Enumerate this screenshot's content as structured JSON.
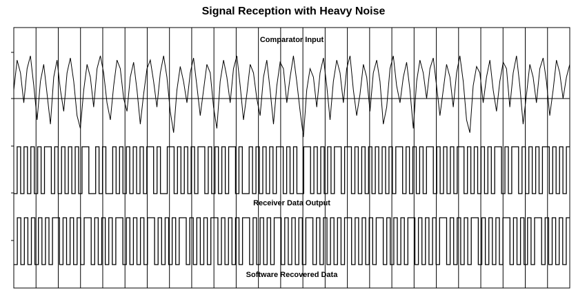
{
  "chart_data": {
    "type": "line",
    "title": "Signal Reception with Heavy Noise",
    "xlabel": "",
    "ylabel": "",
    "grid": true,
    "traces": [
      {
        "name": "Comparator Input",
        "kind": "analog",
        "values": [
          0.2,
          0.9,
          0.6,
          -0.1,
          0.7,
          1.0,
          0.3,
          -0.5,
          0.4,
          0.8,
          0.1,
          -0.6,
          0.5,
          0.9,
          0.2,
          -0.3,
          0.6,
          0.95,
          0.4,
          -0.4,
          -0.7,
          0.2,
          0.8,
          0.5,
          -0.2,
          0.7,
          1.0,
          0.6,
          -0.1,
          -0.5,
          0.3,
          0.9,
          0.7,
          0.0,
          -0.3,
          0.5,
          0.85,
          0.2,
          -0.6,
          0.1,
          0.7,
          0.9,
          0.4,
          -0.2,
          0.6,
          1.0,
          0.5,
          -0.3,
          -0.8,
          0.2,
          0.75,
          0.4,
          -0.1,
          0.6,
          0.95,
          0.3,
          -0.4,
          0.2,
          0.8,
          0.6,
          -0.2,
          -0.7,
          0.4,
          0.9,
          0.5,
          -0.1,
          0.7,
          1.0,
          0.3,
          -0.5,
          0.1,
          0.8,
          0.6,
          0.0,
          -0.4,
          0.5,
          0.9,
          0.2,
          -0.6,
          0.3,
          0.85,
          0.7,
          -0.1,
          0.5,
          1.0,
          0.4,
          -0.3,
          -0.9,
          0.2,
          0.7,
          0.5,
          -0.2,
          0.6,
          0.95,
          0.3,
          -0.5,
          0.4,
          0.9,
          0.6,
          -0.1,
          0.7,
          1.0,
          0.2,
          -0.4,
          0.1,
          0.8,
          0.5,
          -0.3,
          0.6,
          0.9,
          0.4,
          -0.6,
          -0.2,
          0.7,
          1.0,
          0.3,
          -0.1,
          0.5,
          0.85,
          0.2,
          -0.7,
          0.4,
          0.9,
          0.6,
          0.0,
          0.7,
          0.95,
          0.3,
          -0.4,
          0.2,
          0.8,
          0.5,
          -0.2,
          0.6,
          1.0,
          0.4,
          -0.5,
          -0.8,
          0.3,
          0.75,
          0.6,
          -0.1,
          0.5,
          0.9,
          0.2,
          -0.3,
          0.4,
          0.85,
          0.7,
          -0.2,
          0.6,
          1.0,
          0.3,
          -0.6,
          0.1,
          0.8,
          0.5,
          -0.1,
          0.7,
          0.95,
          0.4,
          -0.4,
          0.2,
          0.9,
          0.6,
          0.0,
          0.5,
          0.8
        ],
        "ylim": [
          -1,
          1
        ]
      },
      {
        "name": "Receiver Data Output",
        "kind": "digital",
        "values": [
          0,
          1,
          0,
          1,
          0,
          1,
          0,
          1,
          0,
          1,
          1,
          0,
          1,
          0,
          1,
          0,
          1,
          0,
          1,
          0,
          1,
          1,
          0,
          0,
          1,
          0,
          1,
          0,
          0,
          1,
          0,
          1,
          0,
          1,
          0,
          1,
          0,
          1,
          0,
          1,
          1,
          0,
          1,
          0,
          0,
          1,
          1,
          0,
          1,
          0,
          1,
          0,
          1,
          0,
          1,
          1,
          0,
          1,
          0,
          1,
          0,
          1,
          0,
          1,
          1,
          0,
          1,
          0,
          0,
          1,
          0,
          1,
          0,
          1,
          0,
          1,
          0,
          1,
          1,
          0,
          1,
          0,
          1,
          0,
          0,
          1,
          1,
          0,
          1,
          0,
          1,
          0,
          1,
          0,
          1,
          1,
          0,
          1,
          1,
          0,
          1,
          0,
          1,
          0,
          1,
          0,
          1,
          0,
          1,
          0,
          1,
          0,
          1,
          1,
          0,
          1,
          0,
          1,
          0,
          1,
          0,
          1,
          1,
          0,
          1,
          0,
          1,
          0,
          1,
          0,
          1,
          1,
          0,
          1,
          0,
          1,
          0,
          1,
          0,
          1,
          0,
          1,
          1,
          0,
          1,
          0,
          1,
          1,
          0,
          1,
          0,
          1,
          0,
          1,
          0,
          1,
          1,
          0,
          1,
          0,
          1,
          0,
          1
        ]
      },
      {
        "name": "Software Recovered Data",
        "kind": "digital",
        "values": [
          0,
          1,
          0,
          1,
          0,
          1,
          0,
          1,
          0,
          1,
          0,
          1,
          1,
          0,
          1,
          0,
          1,
          0,
          1,
          0,
          1,
          1,
          0,
          1,
          0,
          1,
          0,
          1,
          0,
          1,
          1,
          0,
          1,
          0,
          1,
          0,
          1,
          0,
          1,
          1,
          0,
          1,
          0,
          1,
          0,
          1,
          0,
          1,
          1,
          0,
          1,
          0,
          1,
          0,
          1,
          0,
          1,
          1,
          0,
          1,
          0,
          1,
          0,
          1,
          0,
          1,
          1,
          0,
          1,
          0,
          1,
          0,
          1,
          0,
          1,
          1,
          0,
          1,
          0,
          1,
          0,
          1,
          0,
          1,
          1,
          0,
          1,
          0,
          1,
          0,
          1,
          0,
          1,
          0,
          1,
          1,
          0,
          1,
          0,
          1,
          0,
          1,
          0,
          1,
          1,
          0,
          1,
          0,
          1,
          0,
          1,
          0,
          1,
          1,
          0,
          1,
          0,
          1,
          0,
          1,
          0,
          1,
          1,
          0,
          1,
          0,
          1,
          0,
          1,
          0,
          1,
          1,
          0,
          1,
          0,
          1,
          0,
          1,
          0,
          1,
          1,
          0,
          1,
          0,
          1,
          0,
          1,
          0,
          1,
          1,
          0,
          1,
          0,
          1,
          0,
          1,
          0,
          1
        ]
      }
    ]
  }
}
